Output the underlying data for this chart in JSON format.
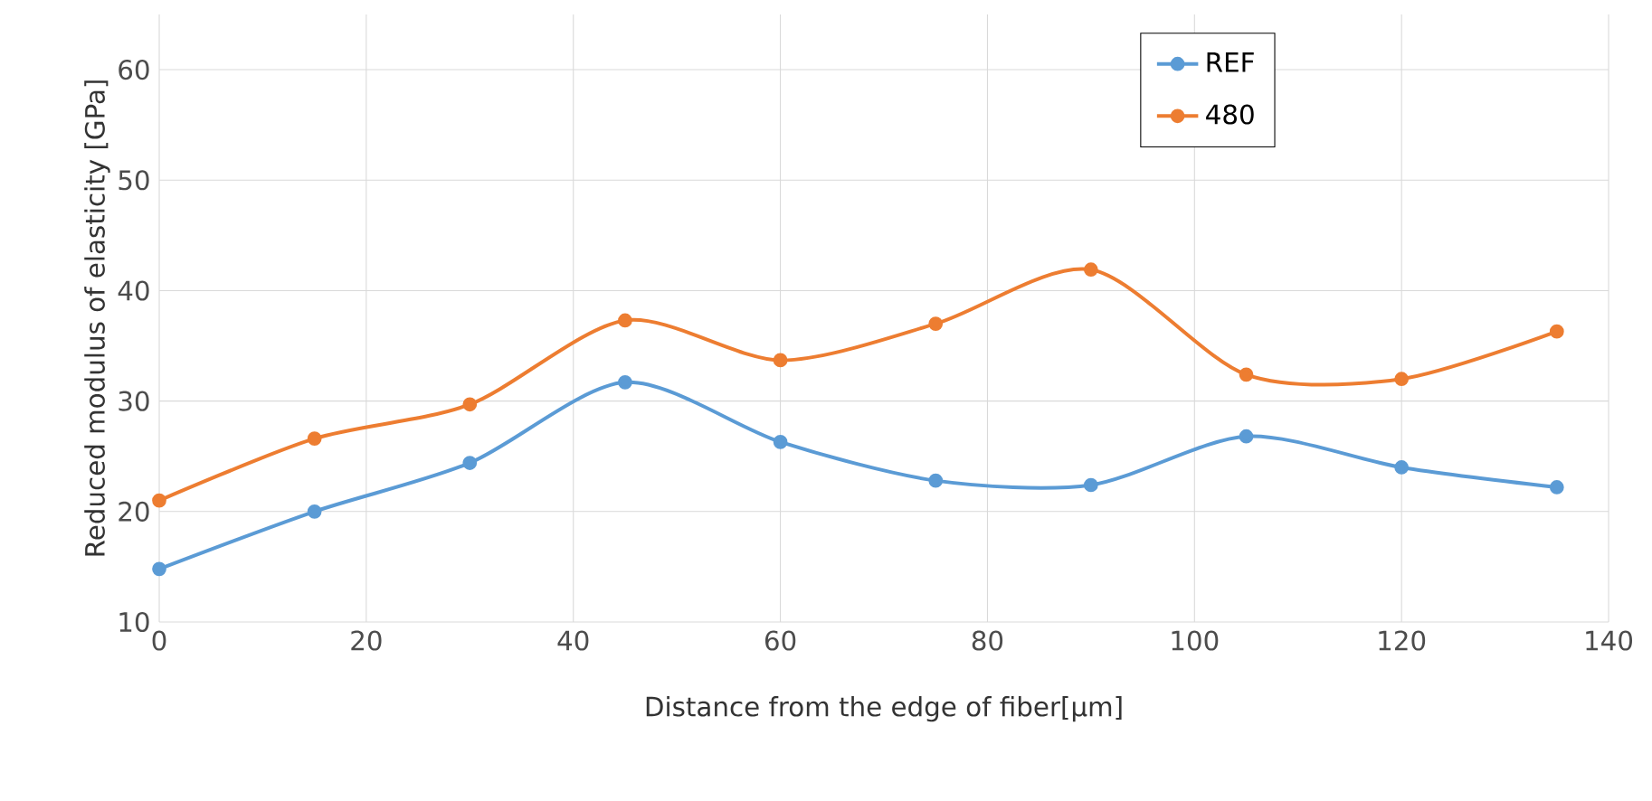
{
  "chart_data": {
    "type": "line",
    "xlabel": "Distance from the edge of fiber[µm]",
    "ylabel": "Reduced modulus of elasticity [GPa]",
    "xlim": [
      0,
      140
    ],
    "xticks": [
      0,
      20,
      40,
      60,
      80,
      100,
      120,
      140
    ],
    "ylim": [
      10,
      65
    ],
    "yticks": [
      10,
      20,
      30,
      40,
      50,
      60
    ],
    "grid": true,
    "legend": "top right",
    "marker": "circle",
    "series": [
      {
        "name": "REF",
        "color": "#5b9bd5",
        "x": [
          0,
          15,
          30,
          45,
          60,
          75,
          90,
          105,
          120,
          135
        ],
        "values": [
          14.8,
          20,
          24.4,
          31.7,
          26.3,
          22.8,
          22.4,
          26.8,
          24,
          22.2
        ]
      },
      {
        "name": "480",
        "color": "#ed7d31",
        "x": [
          0,
          15,
          30,
          45,
          60,
          75,
          90,
          105,
          120,
          135
        ],
        "values": [
          21,
          26.6,
          29.7,
          37.3,
          33.7,
          37,
          41.9,
          32.4,
          32,
          36.3
        ]
      }
    ]
  }
}
